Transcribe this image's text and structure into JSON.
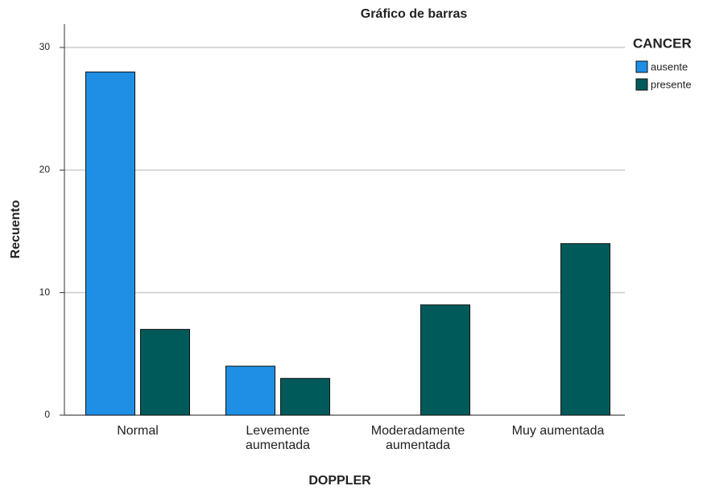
{
  "chart_data": {
    "type": "bar",
    "title": "Gráfico de barras",
    "x_label": "DOPPLER",
    "y_label": "Recuento",
    "categories": [
      "Normal",
      "Levemente\naumentada",
      "Moderadamente\naumentada",
      "Muy aumentada"
    ],
    "legend_title": "CANCER",
    "series": [
      {
        "name": "ausente",
        "color": "#1f8fe5",
        "values": [
          28,
          4,
          0,
          0
        ]
      },
      {
        "name": "presente",
        "color": "#005a5a",
        "values": [
          7,
          3,
          9,
          14
        ]
      }
    ],
    "ylim": [
      0,
      30
    ],
    "yticks": [
      0,
      10,
      20,
      30
    ],
    "grid": true,
    "legend": "right"
  }
}
